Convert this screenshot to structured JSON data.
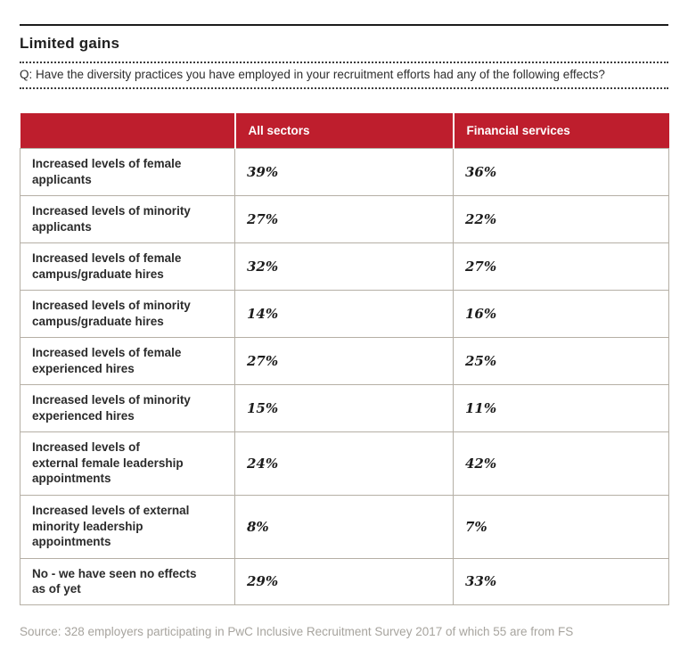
{
  "page": {
    "title": "Limited gains",
    "question": "Q: Have the diversity practices you have employed in your recruitment efforts had any of the following effects?",
    "source": "Source: 328 employers participating in PwC Inclusive Recruitment Survey 2017 of which 55 are from FS"
  },
  "table": {
    "columns": [
      "",
      "All sectors",
      "Financial services"
    ],
    "rows": [
      {
        "label": "Increased levels of female\napplicants",
        "all_sectors": "39%",
        "financial_services": "36%"
      },
      {
        "label": "Increased levels of minority\napplicants",
        "all_sectors": "27%",
        "financial_services": "22%"
      },
      {
        "label": "Increased levels of female\ncampus/graduate hires",
        "all_sectors": "32%",
        "financial_services": "27%"
      },
      {
        "label": "Increased levels of minority\ncampus/graduate hires",
        "all_sectors": "14%",
        "financial_services": "16%"
      },
      {
        "label": "Increased levels of female\nexperienced hires",
        "all_sectors": "27%",
        "financial_services": "25%"
      },
      {
        "label": "Increased levels of minority\nexperienced hires",
        "all_sectors": "15%",
        "financial_services": "11%"
      },
      {
        "label": "Increased levels of\nexternal female leadership\nappointments",
        "all_sectors": "24%",
        "financial_services": "42%"
      },
      {
        "label": "Increased levels of external\nminority leadership\nappointments",
        "all_sectors": "8%",
        "financial_services": "7%"
      },
      {
        "label": "No - we have seen no effects\nas of yet",
        "all_sectors": "29%",
        "financial_services": "33%"
      }
    ]
  },
  "colors": {
    "header_red": "#be1e2d",
    "table_border": "#b5afa5",
    "source_gray": "#a7a49e",
    "text_dark": "#2b2b2b"
  }
}
